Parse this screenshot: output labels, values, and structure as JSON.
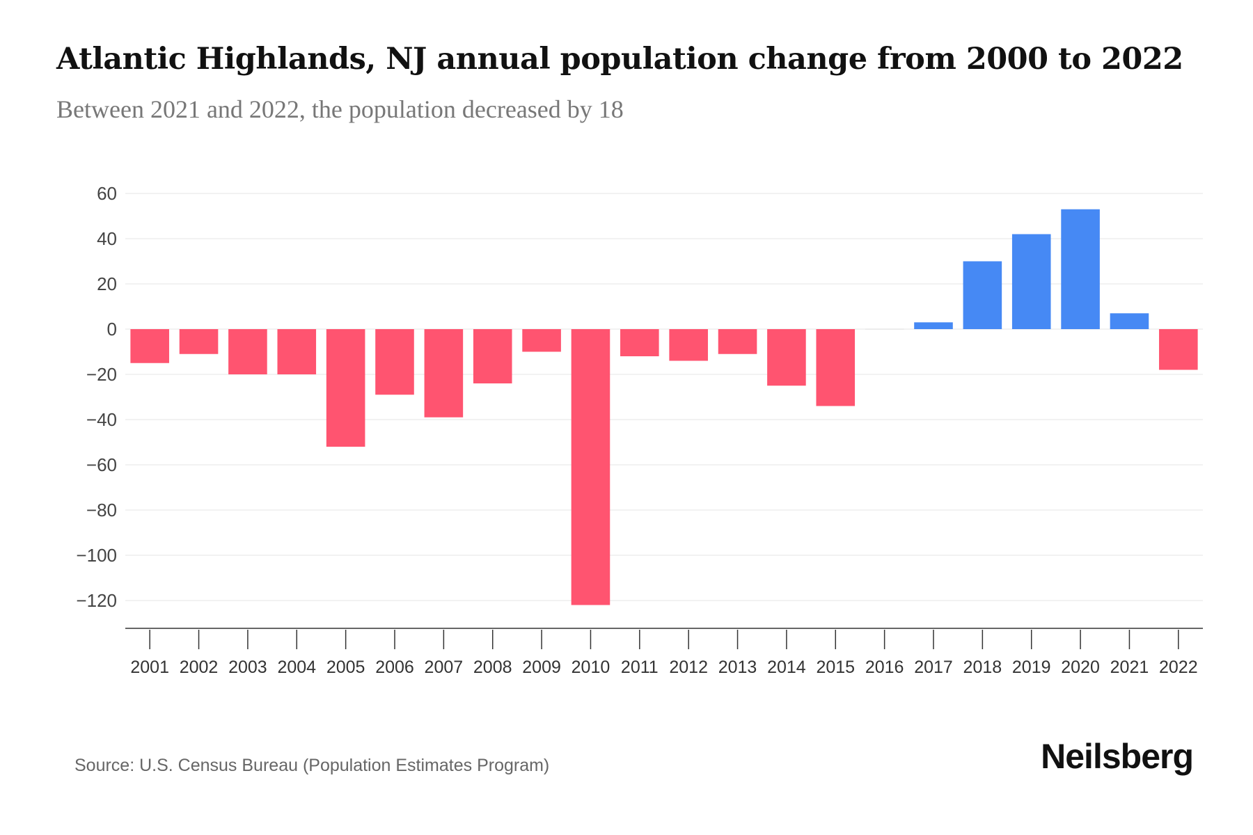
{
  "title": "Atlantic Highlands, NJ annual population change from 2000 to 2022",
  "subtitle": "Between 2021 and 2022, the population decreased by 18",
  "source": "Source: U.S. Census Bureau (Population Estimates Program)",
  "logo": "Neilsberg",
  "colors": {
    "negative": "#FF5470",
    "positive": "#4689F4"
  },
  "chart_data": {
    "type": "bar",
    "title": "Atlantic Highlands, NJ annual population change from 2000 to 2022",
    "xlabel": "",
    "ylabel": "",
    "categories": [
      "2001",
      "2002",
      "2003",
      "2004",
      "2005",
      "2006",
      "2007",
      "2008",
      "2009",
      "2010",
      "2011",
      "2012",
      "2013",
      "2014",
      "2015",
      "2016",
      "2017",
      "2018",
      "2019",
      "2020",
      "2021",
      "2022"
    ],
    "values": [
      -15,
      -11,
      -20,
      -20,
      -52,
      -29,
      -39,
      -24,
      -10,
      -122,
      -12,
      -14,
      -11,
      -25,
      -34,
      0,
      3,
      30,
      42,
      53,
      7,
      -18
    ],
    "yticks": [
      60,
      40,
      20,
      0,
      -20,
      -40,
      -60,
      -80,
      -100,
      -120
    ],
    "ytick_labels": [
      "60",
      "40",
      "20",
      "0",
      "−20",
      "−40",
      "−60",
      "−80",
      "−100",
      "−120"
    ],
    "ylim": [
      -132,
      60
    ],
    "grid": true
  }
}
